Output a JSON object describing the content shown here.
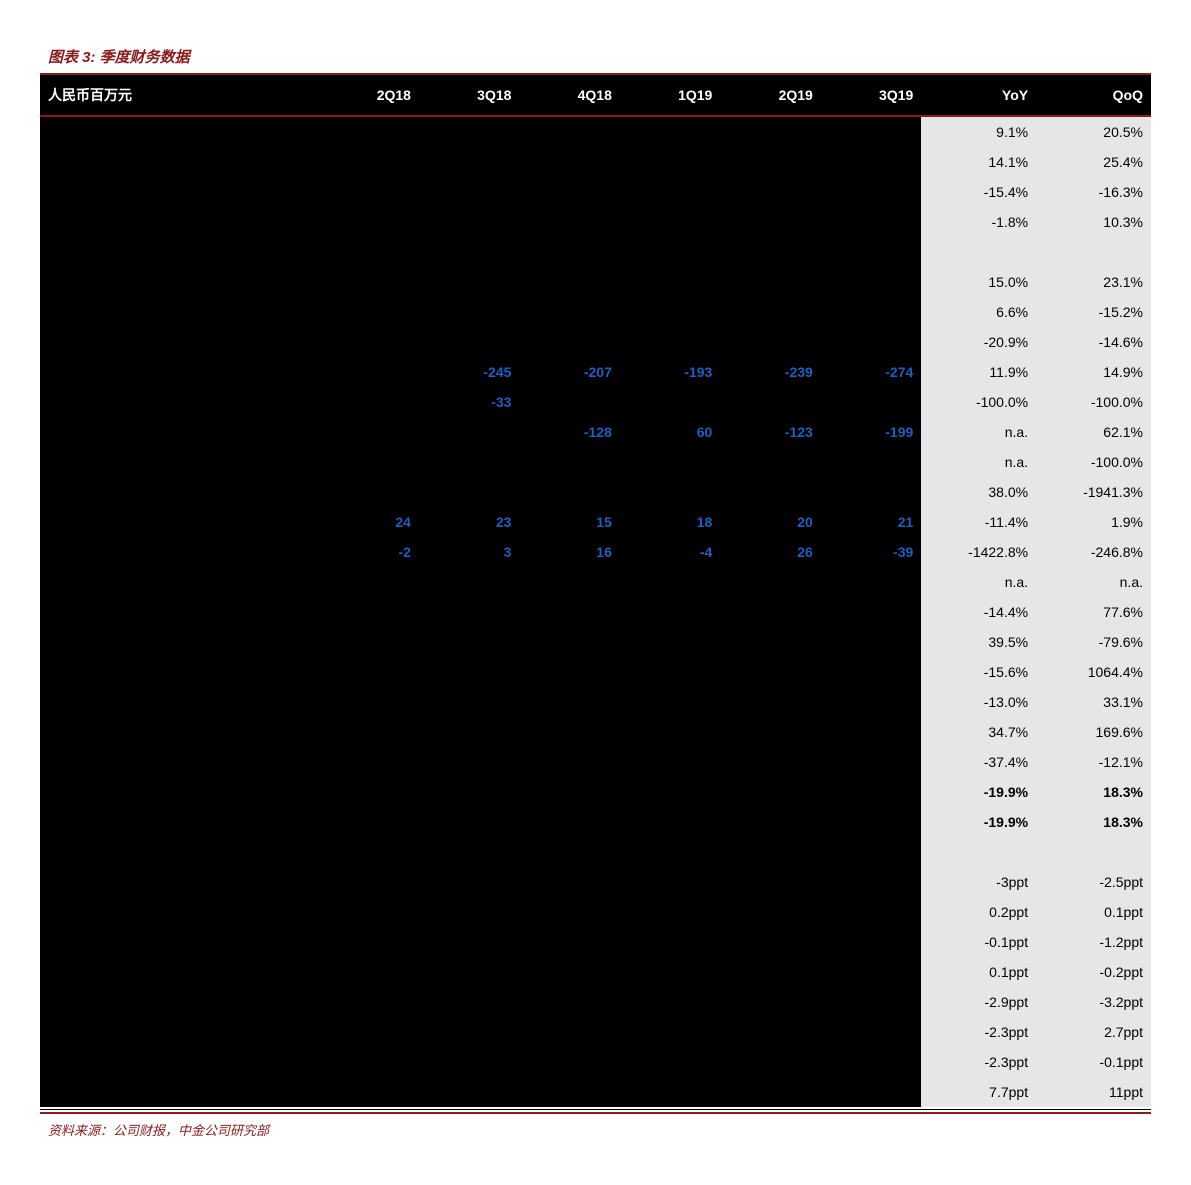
{
  "title": "图表 3: 季度财务数据",
  "source": "资料来源：公司财报，中金公司研究部",
  "columns": {
    "label": "人民币百万元",
    "periods": [
      "2Q18",
      "3Q18",
      "4Q18",
      "1Q19",
      "2Q19",
      "3Q19"
    ],
    "yoy": "YoY",
    "qoq": "QoQ"
  },
  "styling": {
    "title_color": "#8b1a1a",
    "header_bg": "#000000",
    "header_text": "#ffffff",
    "body_bg": "#000000",
    "pct_bg": "#e6e6e6",
    "blue_text": "#1f5fbf",
    "border_rule_color": "#8b1a1a",
    "font_size_body": 14,
    "font_size_title": 15
  },
  "rows": [
    {
      "vals": [
        "",
        "",
        "",
        "",
        "",
        ""
      ],
      "yoy": "9.1%",
      "qoq": "20.5%"
    },
    {
      "vals": [
        "",
        "",
        "",
        "",
        "",
        ""
      ],
      "yoy": "14.1%",
      "qoq": "25.4%"
    },
    {
      "vals": [
        "",
        "",
        "",
        "",
        "",
        ""
      ],
      "yoy": "-15.4%",
      "qoq": "-16.3%"
    },
    {
      "vals": [
        "",
        "",
        "",
        "",
        "",
        ""
      ],
      "yoy": "-1.8%",
      "qoq": "10.3%"
    },
    {
      "vals": [
        "",
        "",
        "",
        "",
        "",
        ""
      ],
      "yoy": "",
      "qoq": "",
      "section": true
    },
    {
      "vals": [
        "",
        "",
        "",
        "",
        "",
        ""
      ],
      "yoy": "15.0%",
      "qoq": "23.1%"
    },
    {
      "vals": [
        "",
        "",
        "",
        "",
        "",
        ""
      ],
      "yoy": "6.6%",
      "qoq": "-15.2%"
    },
    {
      "vals": [
        "",
        "",
        "",
        "",
        "",
        ""
      ],
      "yoy": "-20.9%",
      "qoq": "-14.6%"
    },
    {
      "vals": [
        "",
        "-245",
        "-207",
        "-193",
        "-239",
        "-274"
      ],
      "yoy": "11.9%",
      "qoq": "14.9%",
      "blue": true
    },
    {
      "vals": [
        "",
        "-33",
        "",
        "",
        "",
        ""
      ],
      "yoy": "-100.0%",
      "qoq": "-100.0%",
      "blue": true
    },
    {
      "vals": [
        "",
        "",
        "-128",
        "60",
        "-123",
        "-199"
      ],
      "yoy": "n.a.",
      "qoq": "62.1%",
      "blue": true
    },
    {
      "vals": [
        "",
        "",
        "",
        "",
        "",
        ""
      ],
      "yoy": "n.a.",
      "qoq": "-100.0%"
    },
    {
      "vals": [
        "",
        "",
        "",
        "",
        "",
        ""
      ],
      "yoy": "38.0%",
      "qoq": "-1941.3%"
    },
    {
      "vals": [
        "24",
        "23",
        "15",
        "18",
        "20",
        "21"
      ],
      "yoy": "-11.4%",
      "qoq": "1.9%",
      "blue": true
    },
    {
      "vals": [
        "-2",
        "3",
        "16",
        "-4",
        "26",
        "-39"
      ],
      "yoy": "-1422.8%",
      "qoq": "-246.8%",
      "blue": true
    },
    {
      "vals": [
        "",
        "",
        "",
        "",
        "",
        ""
      ],
      "yoy": "n.a.",
      "qoq": "n.a."
    },
    {
      "vals": [
        "",
        "",
        "",
        "",
        "",
        ""
      ],
      "yoy": "-14.4%",
      "qoq": "77.6%"
    },
    {
      "vals": [
        "",
        "",
        "",
        "",
        "",
        ""
      ],
      "yoy": "39.5%",
      "qoq": "-79.6%"
    },
    {
      "vals": [
        "",
        "",
        "",
        "",
        "",
        ""
      ],
      "yoy": "-15.6%",
      "qoq": "1064.4%"
    },
    {
      "vals": [
        "",
        "",
        "",
        "",
        "",
        ""
      ],
      "yoy": "-13.0%",
      "qoq": "33.1%"
    },
    {
      "vals": [
        "",
        "",
        "",
        "",
        "",
        ""
      ],
      "yoy": "34.7%",
      "qoq": "169.6%"
    },
    {
      "vals": [
        "",
        "",
        "",
        "",
        "",
        ""
      ],
      "yoy": "-37.4%",
      "qoq": "-12.1%"
    },
    {
      "vals": [
        "",
        "",
        "",
        "",
        "",
        ""
      ],
      "yoy": "-19.9%",
      "qoq": "18.3%",
      "bold": true
    },
    {
      "vals": [
        "",
        "",
        "",
        "",
        "",
        ""
      ],
      "yoy": "-19.9%",
      "qoq": "18.3%",
      "bold": true
    },
    {
      "vals": [
        "",
        "",
        "",
        "",
        "",
        ""
      ],
      "yoy": "",
      "qoq": "",
      "section": true
    },
    {
      "vals": [
        "",
        "",
        "",
        "",
        "",
        ""
      ],
      "yoy": "-3ppt",
      "qoq": "-2.5ppt"
    },
    {
      "vals": [
        "",
        "",
        "",
        "",
        "",
        ""
      ],
      "yoy": "0.2ppt",
      "qoq": "0.1ppt"
    },
    {
      "vals": [
        "",
        "",
        "",
        "",
        "",
        ""
      ],
      "yoy": "-0.1ppt",
      "qoq": "-1.2ppt"
    },
    {
      "vals": [
        "",
        "",
        "",
        "",
        "",
        ""
      ],
      "yoy": "0.1ppt",
      "qoq": "-0.2ppt"
    },
    {
      "vals": [
        "",
        "",
        "",
        "",
        "",
        ""
      ],
      "yoy": "-2.9ppt",
      "qoq": "-3.2ppt"
    },
    {
      "vals": [
        "",
        "",
        "",
        "",
        "",
        ""
      ],
      "yoy": "-2.3ppt",
      "qoq": "2.7ppt"
    },
    {
      "vals": [
        "",
        "",
        "",
        "",
        "",
        ""
      ],
      "yoy": "-2.3ppt",
      "qoq": "-0.1ppt"
    },
    {
      "vals": [
        "",
        "",
        "",
        "",
        "",
        ""
      ],
      "yoy": "7.7ppt",
      "qoq": "11ppt"
    }
  ]
}
